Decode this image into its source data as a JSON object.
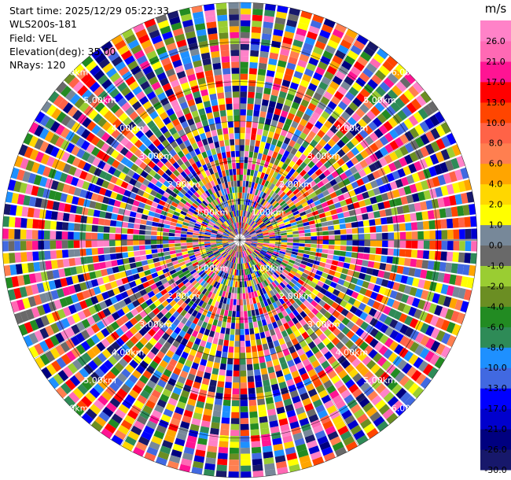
{
  "header": {
    "start_time": "Start time: 2025/12/29 05:22:33",
    "site": "WLS200s-181",
    "field": "Field: VEL",
    "elevation": "Elevation(deg): 35.00",
    "nrays": "NRays: 120"
  },
  "chart_data": {
    "type": "heatmap",
    "projection": "polar-ppi",
    "field": "VEL",
    "units": "m/s",
    "n_rays": 120,
    "n_gates": 40,
    "max_range_km": 6.0,
    "grid": true,
    "range_rings_km": [
      1,
      2,
      3,
      4,
      5,
      6
    ],
    "range_ring_labels": [
      "1.00km",
      "2.00km",
      "3.00km",
      "4.00km",
      "5.00km",
      "6.00km"
    ],
    "colorbar": {
      "unit": "m/s",
      "boundaries": [
        -30.0,
        -26.0,
        -21.0,
        -17.0,
        -13.0,
        -10.0,
        -8.0,
        -6.0,
        -4.0,
        -2.0,
        -1.0,
        0.0,
        1.0,
        2.0,
        4.0,
        6.0,
        8.0,
        10.0,
        13.0,
        17.0,
        21.0,
        26.0
      ],
      "tick_labels": [
        "-30.0",
        "-26.0",
        "-21.0",
        "-17.0",
        "-13.0",
        "-10.0",
        "-8.0",
        "-6.0",
        "-4.0",
        "-2.0",
        "-1.0",
        "0.0",
        "1.0",
        "2.0",
        "4.0",
        "6.0",
        "8.0",
        "10.0",
        "13.0",
        "17.0",
        "21.0",
        "26.0"
      ],
      "colors": [
        "#17186b",
        "#000080",
        "#0000cd",
        "#0000ff",
        "#4169e1",
        "#1e90ff",
        "#2e8b57",
        "#228b22",
        "#6b8e23",
        "#9acd32",
        "#696969",
        "#778899",
        "#ffff00",
        "#ffd700",
        "#ffa500",
        "#ff7f50",
        "#ff6347",
        "#ff4500",
        "#ff0000",
        "#ff1493",
        "#ff69b4",
        "#ff82c8"
      ]
    }
  }
}
